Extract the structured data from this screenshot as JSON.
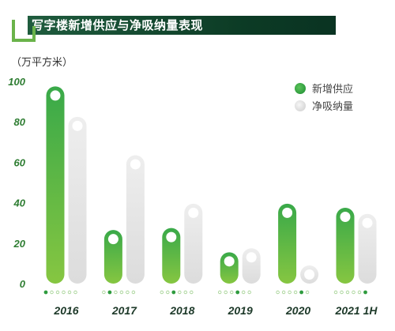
{
  "header": {
    "title": "写字楼新增供应与净吸纳量表现"
  },
  "chart_data": {
    "type": "bar",
    "title": "写字楼新增供应与净吸纳量表现",
    "ylabel": "（万平方米）",
    "ylim": [
      0,
      100
    ],
    "yticks": [
      "0",
      "20",
      "40",
      "60",
      "80",
      "100"
    ],
    "categories": [
      "2016",
      "2017",
      "2018",
      "2019",
      "2020",
      "2021 1H"
    ],
    "series": [
      {
        "name": "新增供应",
        "color": "#3aa848",
        "values": [
          93,
          22,
          23,
          11,
          35,
          33
        ]
      },
      {
        "name": "净吸纳量",
        "color": "#e2e2e2",
        "values": [
          78,
          59,
          35,
          13,
          3,
          30
        ]
      }
    ],
    "legend": "top-right",
    "grid": false
  }
}
